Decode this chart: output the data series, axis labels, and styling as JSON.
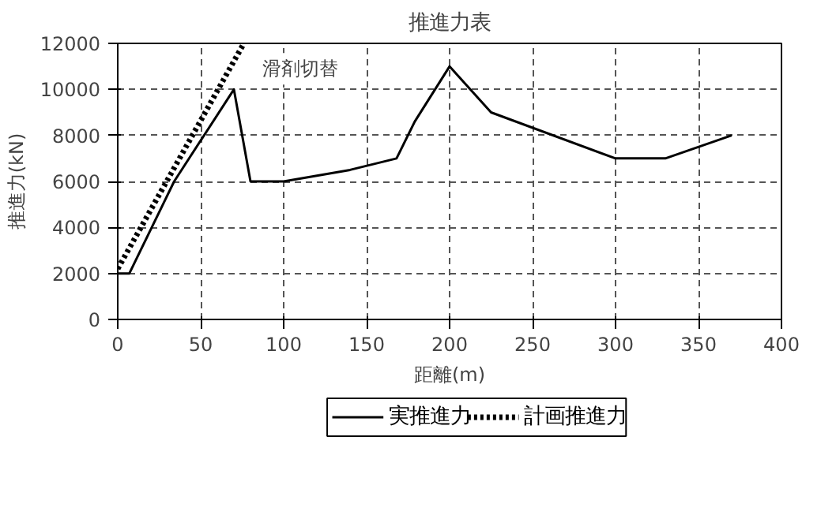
{
  "chart_data": {
    "type": "line",
    "title": "推進力表",
    "xlabel": "距離(m)",
    "ylabel": "推進力(kN)",
    "series": [
      {
        "name": "実推進力",
        "color": "#000000",
        "line_style": "solid",
        "x": [
          0,
          7,
          34,
          70,
          80,
          100,
          140,
          168,
          179,
          200,
          225,
          300,
          330,
          370
        ],
        "values": [
          2000,
          2000,
          6000,
          10000,
          6000,
          6000,
          6500,
          7000,
          8600,
          11000,
          9000,
          7000,
          7000,
          8000
        ]
      },
      {
        "name": "計画推進力",
        "color": "#000000",
        "line_style": "dotted",
        "x": [
          0,
          76
        ],
        "values": [
          2200,
          12000
        ]
      }
    ],
    "annotations": [
      {
        "text": "滑剤切替",
        "x": 70,
        "y": 10000
      }
    ],
    "xlim": [
      0,
      400
    ],
    "xticks": [
      0,
      50,
      100,
      150,
      200,
      250,
      300,
      350,
      400
    ],
    "ylim": [
      0,
      12000
    ],
    "yticks": [
      0,
      2000,
      4000,
      6000,
      8000,
      10000,
      12000
    ],
    "grid": true,
    "legend": "bottom",
    "marker": "none"
  }
}
